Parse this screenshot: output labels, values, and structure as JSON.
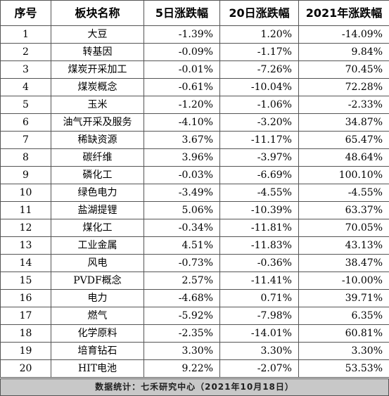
{
  "table": {
    "headers": [
      "序号",
      "板块名称",
      "5日涨跌幅",
      "20日涨跌幅",
      "2021年涨跌幅"
    ],
    "rows": [
      [
        "1",
        "大豆",
        "-1.39%",
        "1.20%",
        "-14.09%"
      ],
      [
        "2",
        "转基因",
        "-0.09%",
        "-1.17%",
        "9.84%"
      ],
      [
        "3",
        "煤炭开采加工",
        "-0.01%",
        "-7.26%",
        "70.45%"
      ],
      [
        "4",
        "煤炭概念",
        "-0.61%",
        "-10.04%",
        "72.28%"
      ],
      [
        "5",
        "玉米",
        "-1.20%",
        "-1.06%",
        "-2.33%"
      ],
      [
        "6",
        "油气开采及服务",
        "-4.10%",
        "-3.20%",
        "34.87%"
      ],
      [
        "7",
        "稀缺资源",
        "3.67%",
        "-11.17%",
        "65.47%"
      ],
      [
        "8",
        "碳纤维",
        "3.96%",
        "-3.97%",
        "48.64%"
      ],
      [
        "9",
        "磷化工",
        "-0.03%",
        "-6.69%",
        "100.10%"
      ],
      [
        "10",
        "绿色电力",
        "-3.49%",
        "-4.55%",
        "-4.55%"
      ],
      [
        "11",
        "盐湖提锂",
        "5.06%",
        "-10.39%",
        "63.37%"
      ],
      [
        "12",
        "煤化工",
        "-0.34%",
        "-11.81%",
        "70.05%"
      ],
      [
        "13",
        "工业金属",
        "4.51%",
        "-11.83%",
        "43.13%"
      ],
      [
        "14",
        "风电",
        "-0.73%",
        "-0.36%",
        "38.47%"
      ],
      [
        "15",
        "PVDF概念",
        "2.57%",
        "-11.41%",
        "-10.00%"
      ],
      [
        "16",
        "电力",
        "-4.68%",
        "0.71%",
        "39.71%"
      ],
      [
        "17",
        "燃气",
        "-5.92%",
        "-7.98%",
        "6.35%"
      ],
      [
        "18",
        "化学原料",
        "-2.35%",
        "-14.01%",
        "60.81%"
      ],
      [
        "19",
        "培育钻石",
        "3.30%",
        "3.30%",
        "3.30%"
      ],
      [
        "20",
        "HIT电池",
        "9.22%",
        "-2.07%",
        "53.53%"
      ]
    ]
  },
  "footnote": "数据统计：七禾研究中心（2021年10月18日）"
}
